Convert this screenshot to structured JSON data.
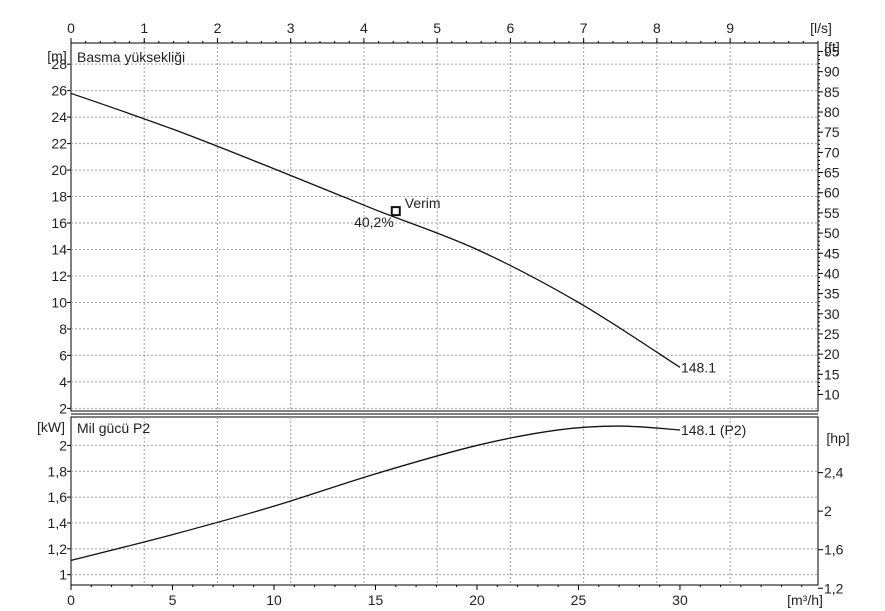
{
  "chart_data": [
    {
      "type": "line",
      "title": "Basma yüksekliği",
      "xlabel_top": "[l/s]",
      "xlim_top": [
        0,
        10.2
      ],
      "xticks_top": [
        "0",
        "1",
        "2",
        "3",
        "4",
        "5",
        "6",
        "7",
        "8",
        "9"
      ],
      "ylabel_left": "[m]",
      "ylabel_right": "[ft]",
      "xlim": [
        0,
        36.8
      ],
      "ylim": [
        1.8,
        29.6
      ],
      "yticks_left": [
        "2",
        "4",
        "6",
        "8",
        "10",
        "12",
        "14",
        "16",
        "18",
        "20",
        "22",
        "24",
        "26",
        "28"
      ],
      "yticks_right": [
        "10",
        "15",
        "20",
        "25",
        "30",
        "35",
        "40",
        "45",
        "50",
        "55",
        "60",
        "65",
        "70",
        "75",
        "80",
        "85",
        "90",
        "95"
      ],
      "grid": true,
      "series": [
        {
          "name": "148.1",
          "x": [
            0,
            5,
            10,
            15,
            20,
            25,
            30
          ],
          "y": [
            25.8,
            23.1,
            20.1,
            17.0,
            14.0,
            10.0,
            5.1
          ]
        }
      ],
      "annotations": [
        {
          "x": 16,
          "y": 16.9,
          "marker": "square",
          "label": "Verim",
          "value_label": "40,2%"
        }
      ]
    },
    {
      "type": "line",
      "title": "Mil gücü P2",
      "xlabel": "[m³/h]",
      "xlim": [
        0,
        36.8
      ],
      "xticks": [
        "0",
        "5",
        "10",
        "15",
        "20",
        "25",
        "30"
      ],
      "ylabel_left": "[kW]",
      "ylabel_right": "[hp]",
      "ylim": [
        0.92,
        2.22
      ],
      "yticks_left": [
        "1",
        "1,2",
        "1,4",
        "1,6",
        "1,8",
        "2"
      ],
      "yticks_right": [
        "1,2",
        "1,6",
        "2",
        "2,4"
      ],
      "grid": true,
      "series": [
        {
          "name": "148.1 (P2)",
          "x": [
            0,
            5,
            10,
            15,
            20,
            24,
            27,
            30
          ],
          "y": [
            1.11,
            1.31,
            1.53,
            1.78,
            2.0,
            2.12,
            2.15,
            2.12
          ]
        }
      ]
    }
  ],
  "colors": {
    "curve": "#111111",
    "grid": "#a0a0a0",
    "marker": "#111111",
    "background": "#ffffff"
  }
}
